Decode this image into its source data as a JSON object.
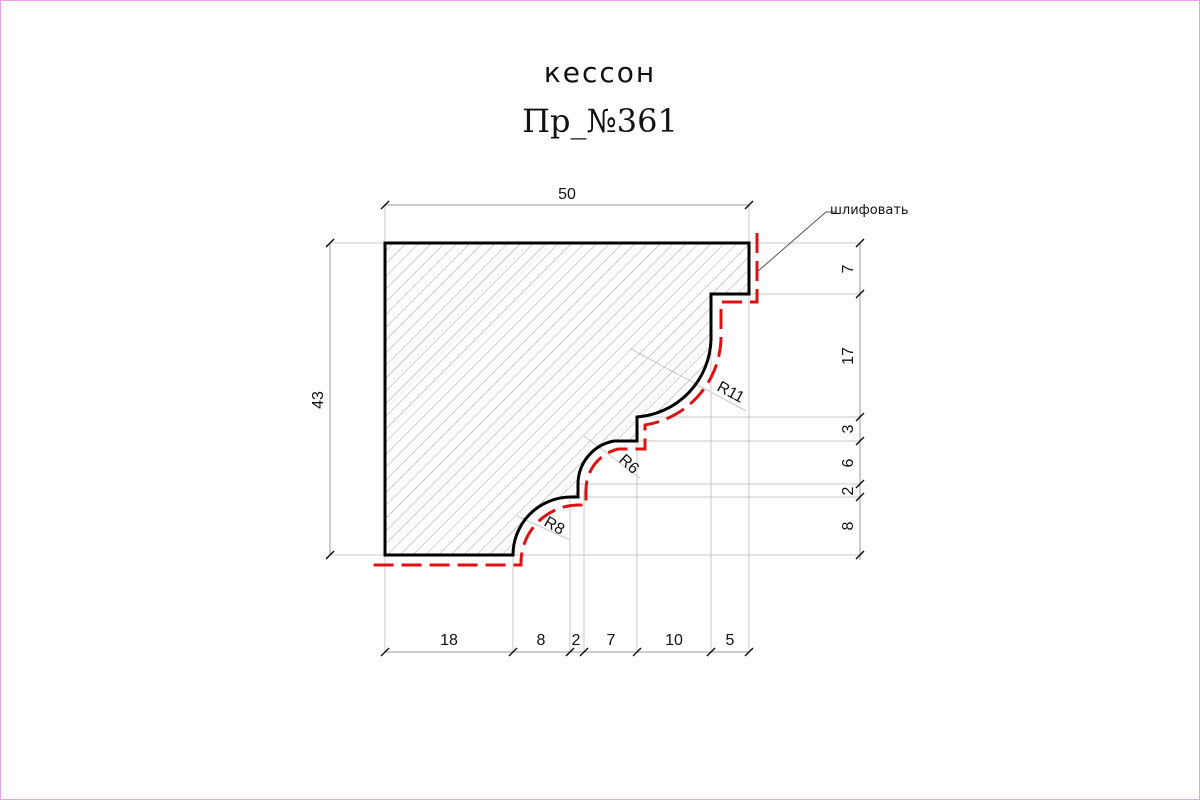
{
  "title": "кессон",
  "subtitle": "Пр_№361",
  "note": "шлифовать",
  "colors": {
    "outline": "#000000",
    "hatch": "#8a8a8a",
    "finish_line": "#e01010",
    "frame": "#e8a4e8"
  },
  "dimensions": {
    "width_total": "50",
    "height_total": "43",
    "right": [
      "7",
      "17",
      "3",
      "6",
      "2",
      "8"
    ],
    "bottom": [
      "18",
      "8",
      "2",
      "7",
      "10",
      "5"
    ]
  },
  "radii": {
    "r11": "R11",
    "r6": "R6",
    "r8": "R8"
  }
}
